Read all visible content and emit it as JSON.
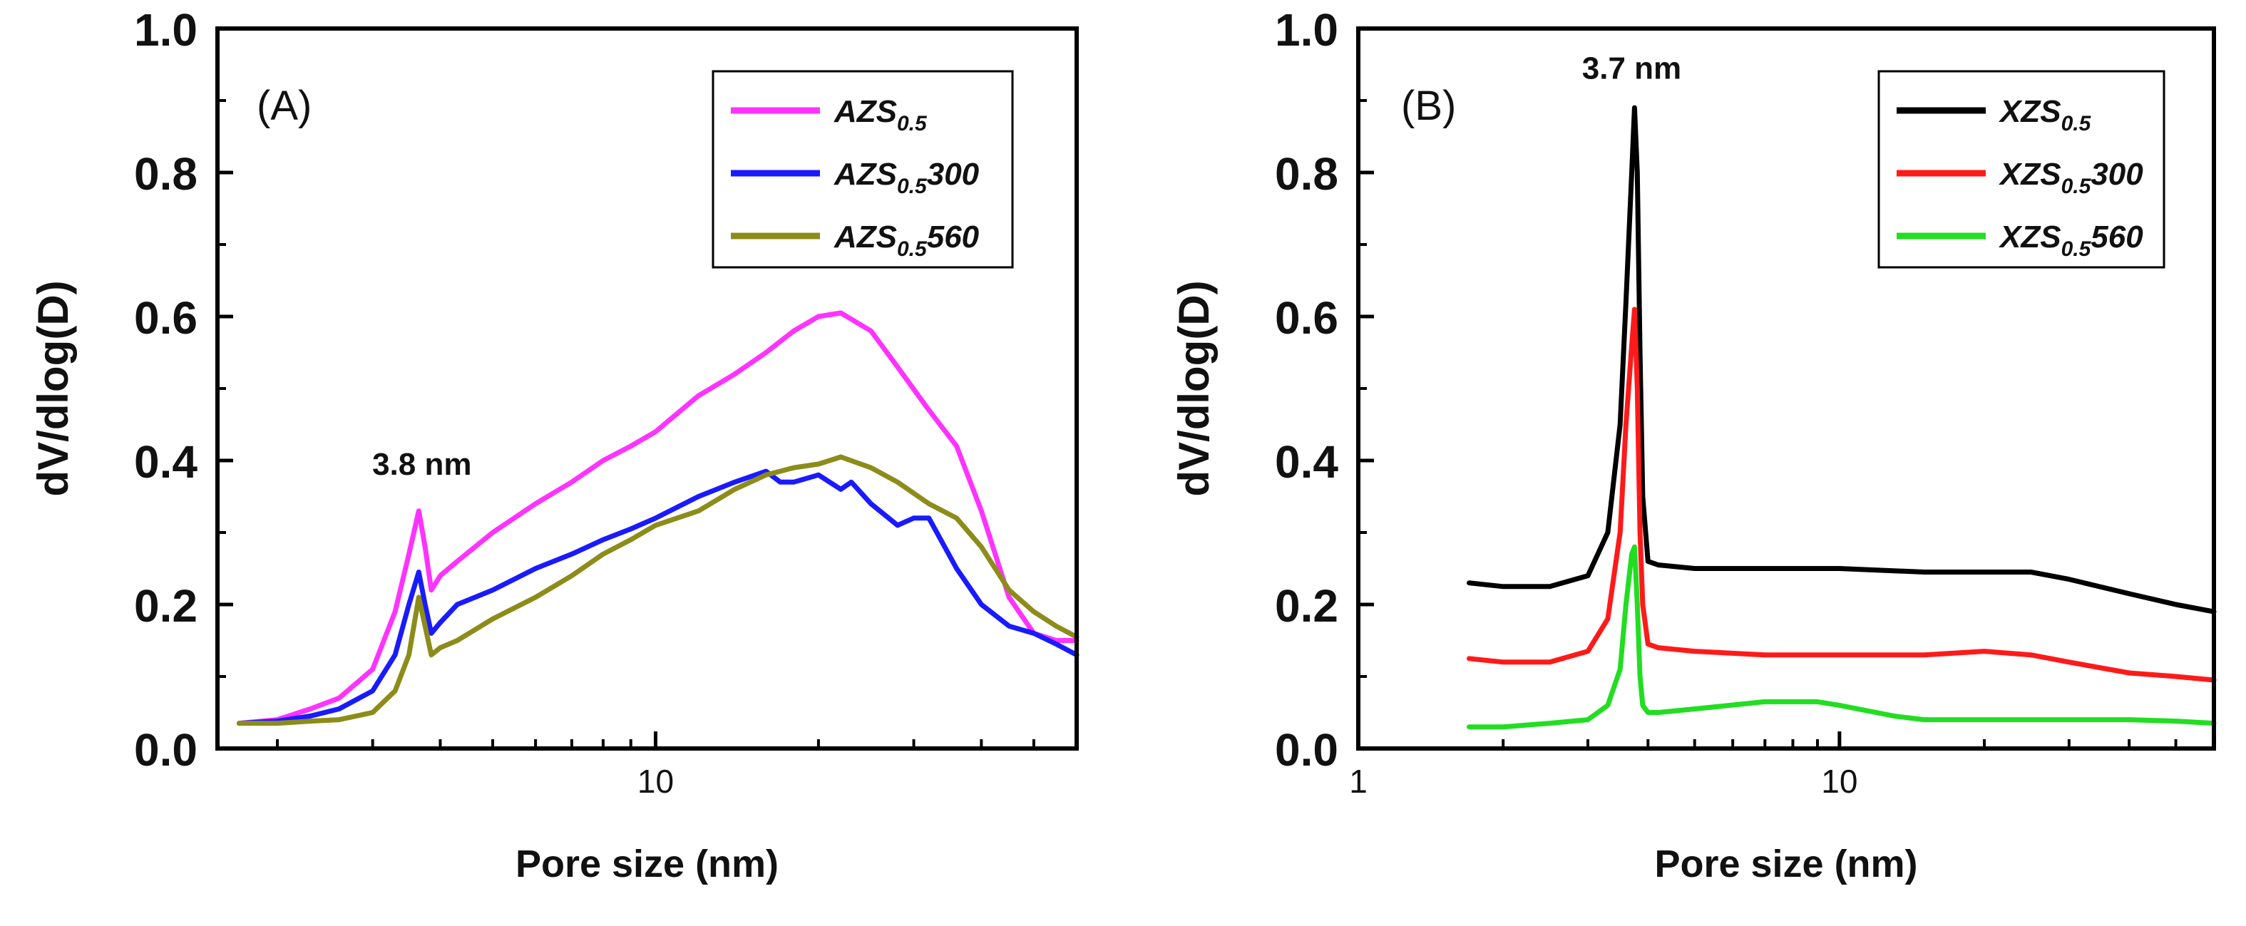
{
  "chart_data": [
    {
      "type": "line",
      "panel_label": "(A)",
      "xlabel": "Pore size (nm)",
      "ylabel": "dV/dlog(D)",
      "x_scale": "log",
      "xlim": [
        1.55,
        60
      ],
      "ylim": [
        0,
        1.0
      ],
      "x_ticks": [
        10
      ],
      "x_tick_labels": [
        "10"
      ],
      "y_ticks": [
        0.0,
        0.2,
        0.4,
        0.6,
        0.8,
        1.0
      ],
      "y_tick_labels": [
        "0.0",
        "0.2",
        "0.4",
        "0.6",
        "0.8",
        "1.0"
      ],
      "legend_position": "top-right",
      "annotation": {
        "text": "3.8 nm",
        "x": 3.7,
        "y": 0.38
      },
      "series": [
        {
          "name": "AZS",
          "subscript": "0.5",
          "suffix": "",
          "color": "#ff33ff",
          "x": [
            1.7,
            2.0,
            2.3,
            2.6,
            3.0,
            3.3,
            3.5,
            3.65,
            3.75,
            3.85,
            4.0,
            4.3,
            5.0,
            6.0,
            7.0,
            8.0,
            9.0,
            10.0,
            12.0,
            14.0,
            16.0,
            18.0,
            20.0,
            22.0,
            25.0,
            28.0,
            32.0,
            36.0,
            40.0,
            45.0,
            50.0,
            55.0,
            60.0
          ],
          "y": [
            0.035,
            0.04,
            0.055,
            0.07,
            0.11,
            0.19,
            0.27,
            0.33,
            0.28,
            0.22,
            0.24,
            0.26,
            0.3,
            0.34,
            0.37,
            0.4,
            0.42,
            0.44,
            0.49,
            0.52,
            0.55,
            0.58,
            0.6,
            0.605,
            0.58,
            0.53,
            0.47,
            0.42,
            0.33,
            0.21,
            0.16,
            0.15,
            0.15
          ]
        },
        {
          "name": "AZS",
          "subscript": "0.5",
          "suffix": "300",
          "color": "#1a1aff",
          "x": [
            1.7,
            2.0,
            2.3,
            2.6,
            3.0,
            3.3,
            3.5,
            3.65,
            3.75,
            3.85,
            4.0,
            4.3,
            5.0,
            6.0,
            7.0,
            8.0,
            9.0,
            10.0,
            12.0,
            14.0,
            16.0,
            17.0,
            18.0,
            20.0,
            22.0,
            23.0,
            25.0,
            28.0,
            30.0,
            32.0,
            36.0,
            40.0,
            45.0,
            50.0,
            55.0,
            60.0
          ],
          "y": [
            0.035,
            0.038,
            0.045,
            0.055,
            0.08,
            0.13,
            0.2,
            0.245,
            0.2,
            0.16,
            0.175,
            0.2,
            0.22,
            0.25,
            0.27,
            0.29,
            0.305,
            0.32,
            0.35,
            0.37,
            0.385,
            0.37,
            0.37,
            0.38,
            0.36,
            0.37,
            0.34,
            0.31,
            0.32,
            0.32,
            0.25,
            0.2,
            0.17,
            0.16,
            0.145,
            0.13
          ]
        },
        {
          "name": "AZS",
          "subscript": "0.5",
          "suffix": "560",
          "color": "#8c8c1a",
          "x": [
            1.7,
            2.0,
            2.3,
            2.6,
            3.0,
            3.3,
            3.5,
            3.65,
            3.75,
            3.85,
            4.0,
            4.3,
            5.0,
            6.0,
            7.0,
            8.0,
            9.0,
            10.0,
            12.0,
            14.0,
            16.0,
            18.0,
            20.0,
            22.0,
            25.0,
            28.0,
            32.0,
            36.0,
            40.0,
            45.0,
            50.0,
            55.0,
            60.0
          ],
          "y": [
            0.035,
            0.035,
            0.038,
            0.04,
            0.05,
            0.08,
            0.13,
            0.21,
            0.17,
            0.13,
            0.14,
            0.15,
            0.18,
            0.21,
            0.24,
            0.27,
            0.29,
            0.31,
            0.33,
            0.36,
            0.38,
            0.39,
            0.395,
            0.405,
            0.39,
            0.37,
            0.34,
            0.32,
            0.28,
            0.22,
            0.19,
            0.17,
            0.155
          ]
        }
      ]
    },
    {
      "type": "line",
      "panel_label": "(B)",
      "xlabel": "Pore size (nm)",
      "ylabel": "dV/dlog(D)",
      "x_scale": "log",
      "xlim": [
        1,
        60
      ],
      "ylim": [
        0,
        1.0
      ],
      "x_ticks": [
        1,
        10
      ],
      "x_tick_labels": [
        "1",
        "10"
      ],
      "y_ticks": [
        0.0,
        0.2,
        0.4,
        0.6,
        0.8,
        1.0
      ],
      "y_tick_labels": [
        "0.0",
        "0.2",
        "0.4",
        "0.6",
        "0.8",
        "1.0"
      ],
      "legend_position": "top-right",
      "annotation": {
        "text": "3.7 nm",
        "x": 3.7,
        "y": 0.93
      },
      "series": [
        {
          "name": "XZS",
          "subscript": "0.5",
          "suffix": "",
          "color": "#000000",
          "x": [
            1.7,
            2.0,
            2.5,
            3.0,
            3.3,
            3.5,
            3.6,
            3.7,
            3.75,
            3.8,
            3.85,
            3.9,
            4.0,
            4.2,
            5.0,
            7.0,
            10.0,
            15.0,
            20.0,
            25.0,
            30.0,
            40.0,
            50.0,
            60.0
          ],
          "y": [
            0.23,
            0.225,
            0.225,
            0.24,
            0.3,
            0.45,
            0.62,
            0.8,
            0.89,
            0.8,
            0.55,
            0.35,
            0.26,
            0.255,
            0.25,
            0.25,
            0.25,
            0.245,
            0.245,
            0.245,
            0.235,
            0.215,
            0.2,
            0.19
          ]
        },
        {
          "name": "XZS",
          "subscript": "0.5",
          "suffix": "300",
          "color": "#ff1a1a",
          "x": [
            1.7,
            2.0,
            2.5,
            3.0,
            3.3,
            3.5,
            3.6,
            3.7,
            3.75,
            3.8,
            3.85,
            3.9,
            4.0,
            4.2,
            5.0,
            7.0,
            10.0,
            15.0,
            20.0,
            25.0,
            30.0,
            40.0,
            50.0,
            60.0
          ],
          "y": [
            0.125,
            0.12,
            0.12,
            0.135,
            0.18,
            0.3,
            0.45,
            0.56,
            0.61,
            0.5,
            0.3,
            0.2,
            0.145,
            0.14,
            0.135,
            0.13,
            0.13,
            0.13,
            0.135,
            0.13,
            0.12,
            0.105,
            0.1,
            0.095
          ]
        },
        {
          "name": "XZS",
          "subscript": "0.5",
          "suffix": "560",
          "color": "#22dd22",
          "x": [
            1.7,
            2.0,
            2.5,
            3.0,
            3.3,
            3.5,
            3.6,
            3.7,
            3.75,
            3.8,
            3.85,
            3.9,
            4.0,
            4.2,
            5.0,
            7.0,
            9.0,
            10.0,
            13.0,
            15.0,
            20.0,
            30.0,
            40.0,
            50.0,
            60.0
          ],
          "y": [
            0.03,
            0.03,
            0.035,
            0.04,
            0.06,
            0.11,
            0.2,
            0.27,
            0.28,
            0.2,
            0.1,
            0.06,
            0.05,
            0.05,
            0.055,
            0.065,
            0.065,
            0.06,
            0.045,
            0.04,
            0.04,
            0.04,
            0.04,
            0.038,
            0.035
          ]
        }
      ]
    }
  ]
}
